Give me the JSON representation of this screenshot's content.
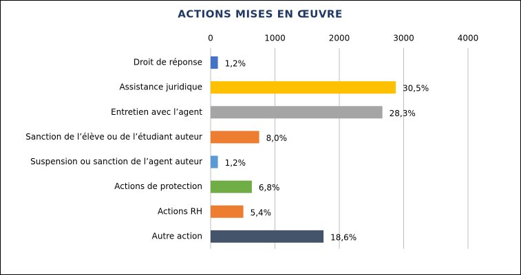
{
  "chart_data": {
    "type": "bar",
    "orientation": "horizontal",
    "title": "ACTIONS MISES EN ŒUVRE",
    "categories": [
      "Droit de réponse",
      "Assistance juridique",
      "Entretien avec l’agent",
      "Sanction de l’élève ou de l’étudiant auteur",
      "Suspension ou sanction de l’agent auteur",
      "Actions de protection",
      "Actions RH",
      "Autre action"
    ],
    "values": [
      113,
      2877,
      2670,
      755,
      113,
      641,
      509,
      1755
    ],
    "value_labels": [
      "1,2%",
      "30,5%",
      "28,3%",
      "8,0%",
      "1,2%",
      "6,8%",
      "5,4%",
      "18,6%"
    ],
    "colors": [
      "#4472c4",
      "#ffc000",
      "#a5a5a5",
      "#ed7d31",
      "#5b9bd5",
      "#70ad47",
      "#ed7d31",
      "#44546a"
    ],
    "xlim": [
      0,
      4000
    ],
    "xticks": [
      0,
      1000,
      2000,
      3000,
      4000
    ],
    "grid": true
  }
}
